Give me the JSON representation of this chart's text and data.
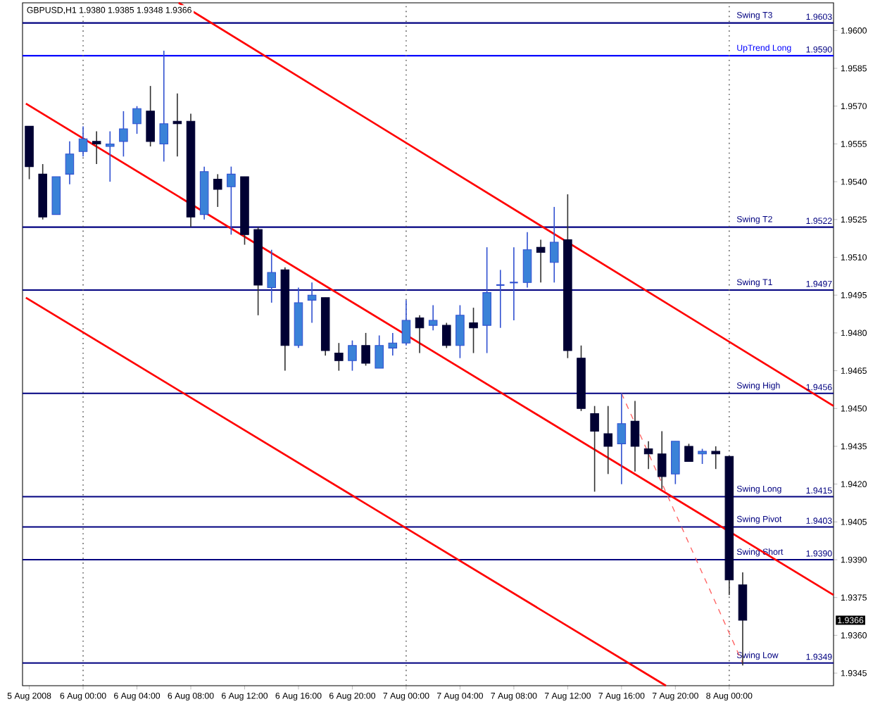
{
  "chart_data": {
    "type": "candlestick",
    "title": "GBPUSD,H1  1.9380 1.9385 1.9348 1.9366",
    "x": [
      "2008-08-05T20:00",
      "2008-08-05T21:00",
      "2008-08-05T22:00",
      "2008-08-05T23:00",
      "2008-08-06T00:00",
      "2008-08-06T01:00",
      "2008-08-06T02:00",
      "2008-08-06T03:00",
      "2008-08-06T04:00",
      "2008-08-06T05:00",
      "2008-08-06T06:00",
      "2008-08-06T07:00",
      "2008-08-06T08:00",
      "2008-08-06T09:00",
      "2008-08-06T10:00",
      "2008-08-06T11:00",
      "2008-08-06T12:00",
      "2008-08-06T13:00",
      "2008-08-06T14:00",
      "2008-08-06T15:00",
      "2008-08-06T16:00",
      "2008-08-06T17:00",
      "2008-08-06T18:00",
      "2008-08-06T19:00",
      "2008-08-06T20:00",
      "2008-08-06T21:00",
      "2008-08-06T22:00",
      "2008-08-06T23:00",
      "2008-08-07T00:00",
      "2008-08-07T01:00",
      "2008-08-07T02:00",
      "2008-08-07T03:00",
      "2008-08-07T04:00",
      "2008-08-07T05:00",
      "2008-08-07T06:00",
      "2008-08-07T07:00",
      "2008-08-07T08:00",
      "2008-08-07T09:00",
      "2008-08-07T10:00",
      "2008-08-07T11:00",
      "2008-08-07T12:00",
      "2008-08-07T13:00",
      "2008-08-07T14:00",
      "2008-08-07T15:00",
      "2008-08-07T16:00",
      "2008-08-07T17:00",
      "2008-08-07T18:00",
      "2008-08-07T19:00",
      "2008-08-07T20:00",
      "2008-08-07T21:00",
      "2008-08-07T22:00",
      "2008-08-07T23:00",
      "2008-08-08T00:00",
      "2008-08-08T01:00"
    ],
    "ohlc": [
      [
        1.9562,
        1.9562,
        1.9541,
        1.9546
      ],
      [
        1.9543,
        1.9547,
        1.9525,
        1.9526
      ],
      [
        1.9527,
        1.9542,
        1.9527,
        1.9542
      ],
      [
        1.9543,
        1.9556,
        1.9539,
        1.9551
      ],
      [
        1.9552,
        1.9562,
        1.955,
        1.9557
      ],
      [
        1.9556,
        1.956,
        1.9547,
        1.9555
      ],
      [
        1.9554,
        1.956,
        1.954,
        1.9555
      ],
      [
        1.9556,
        1.9568,
        1.955,
        1.9561
      ],
      [
        1.9563,
        1.957,
        1.9559,
        1.9569
      ],
      [
        1.9568,
        1.9578,
        1.9554,
        1.9556
      ],
      [
        1.9555,
        1.9592,
        1.9548,
        1.9563
      ],
      [
        1.9564,
        1.9575,
        1.955,
        1.9563
      ],
      [
        1.9564,
        1.9567,
        1.9522,
        1.9526
      ],
      [
        1.9527,
        1.9546,
        1.9525,
        1.9544
      ],
      [
        1.9541,
        1.9543,
        1.953,
        1.9537
      ],
      [
        1.9538,
        1.9546,
        1.9519,
        1.9543
      ],
      [
        1.9542,
        1.9542,
        1.9515,
        1.9519
      ],
      [
        1.9521,
        1.9522,
        1.9487,
        1.9499
      ],
      [
        1.9498,
        1.9513,
        1.9492,
        1.9504
      ],
      [
        1.9505,
        1.9506,
        1.9465,
        1.9475
      ],
      [
        1.9475,
        1.9498,
        1.9474,
        1.9492
      ],
      [
        1.9493,
        1.95,
        1.9484,
        1.9495
      ],
      [
        1.9494,
        1.9494,
        1.9471,
        1.9473
      ],
      [
        1.9472,
        1.9476,
        1.9465,
        1.9469
      ],
      [
        1.9469,
        1.9477,
        1.9465,
        1.9475
      ],
      [
        1.9475,
        1.948,
        1.9467,
        1.9468
      ],
      [
        1.9466,
        1.9479,
        1.9466,
        1.9475
      ],
      [
        1.9474,
        1.948,
        1.9471,
        1.9476
      ],
      [
        1.9476,
        1.9493,
        1.9475,
        1.9485
      ],
      [
        1.9486,
        1.9487,
        1.9472,
        1.9482
      ],
      [
        1.9483,
        1.9491,
        1.9481,
        1.9485
      ],
      [
        1.9483,
        1.9484,
        1.9474,
        1.9475
      ],
      [
        1.9475,
        1.9491,
        1.947,
        1.9487
      ],
      [
        1.9484,
        1.949,
        1.9472,
        1.9482
      ],
      [
        1.9483,
        1.9514,
        1.9472,
        1.9496
      ],
      [
        1.9499,
        1.9505,
        1.9482,
        1.9499
      ],
      [
        1.95,
        1.9514,
        1.9485,
        1.95
      ],
      [
        1.95,
        1.952,
        1.9498,
        1.9513
      ],
      [
        1.9514,
        1.9517,
        1.95,
        1.9512
      ],
      [
        1.9508,
        1.953,
        1.95,
        1.9516
      ],
      [
        1.9517,
        1.9535,
        1.947,
        1.9473
      ],
      [
        1.947,
        1.9475,
        1.9449,
        1.945
      ],
      [
        1.9448,
        1.9451,
        1.9417,
        1.9441
      ],
      [
        1.944,
        1.9451,
        1.9424,
        1.9435
      ],
      [
        1.9436,
        1.9456,
        1.942,
        1.9444
      ],
      [
        1.9445,
        1.9453,
        1.9425,
        1.9435
      ],
      [
        1.9434,
        1.9437,
        1.9426,
        1.9432
      ],
      [
        1.9432,
        1.9441,
        1.9418,
        1.9423
      ],
      [
        1.9424,
        1.9437,
        1.942,
        1.9437
      ],
      [
        1.9435,
        1.9436,
        1.9429,
        1.9429
      ],
      [
        1.9432,
        1.9434,
        1.9428,
        1.9433
      ],
      [
        1.9433,
        1.9435,
        1.9426,
        1.9432
      ],
      [
        1.9431,
        1.9431,
        1.9376,
        1.9382
      ],
      [
        1.938,
        1.9385,
        1.9348,
        1.9366
      ]
    ],
    "series": [
      {
        "type": "line",
        "color": "#ff0000",
        "x": [
          "2008-08-06T07:06",
          "2008-08-08T07:45"
        ],
        "values": [
          1.9611,
          1.9451
        ]
      },
      {
        "type": "line",
        "color": "#ff0000",
        "x": [
          "2008-08-05T19:45",
          "2008-08-08T07:45"
        ],
        "values": [
          1.9571,
          1.9376
        ]
      },
      {
        "type": "line",
        "color": "#ff0000",
        "x": [
          "2008-08-05T19:45",
          "2008-08-07T19:18"
        ],
        "values": [
          1.9494,
          1.934
        ]
      },
      {
        "type": "line",
        "color": "#ff6060",
        "line_style": "dashed",
        "x": [
          "2008-08-07T16:00",
          "2008-08-08T01:00"
        ],
        "values": [
          1.9456,
          1.9349
        ]
      }
    ],
    "xlim": [
      "2008-08-05T19:30",
      "2008-08-08T07:45"
    ],
    "xticks": [
      {
        "value": "2008-08-05T20:00",
        "label": "5 Aug 2008"
      },
      {
        "value": "2008-08-06T00:00",
        "label": "6 Aug 00:00"
      },
      {
        "value": "2008-08-06T04:00",
        "label": "6 Aug 04:00"
      },
      {
        "value": "2008-08-06T08:00",
        "label": "6 Aug 08:00"
      },
      {
        "value": "2008-08-06T12:00",
        "label": "6 Aug 12:00"
      },
      {
        "value": "2008-08-06T16:00",
        "label": "6 Aug 16:00"
      },
      {
        "value": "2008-08-06T20:00",
        "label": "6 Aug 20:00"
      },
      {
        "value": "2008-08-07T00:00",
        "label": "7 Aug 00:00"
      },
      {
        "value": "2008-08-07T04:00",
        "label": "7 Aug 04:00"
      },
      {
        "value": "2008-08-07T08:00",
        "label": "7 Aug 08:00"
      },
      {
        "value": "2008-08-07T12:00",
        "label": "7 Aug 12:00"
      },
      {
        "value": "2008-08-07T16:00",
        "label": "7 Aug 16:00"
      },
      {
        "value": "2008-08-07T20:00",
        "label": "7 Aug 20:00"
      },
      {
        "value": "2008-08-08T00:00",
        "label": "8 Aug 00:00"
      }
    ],
    "ylim": [
      1.934,
      1.9611
    ],
    "yticks": [
      1.9345,
      {
        "value": 1.936,
        "label": "1.9360"
      },
      1.9375,
      {
        "value": 1.939,
        "label": "1.9390"
      },
      1.9405,
      {
        "value": 1.942,
        "label": "1.9420"
      },
      1.9435,
      {
        "value": 1.945,
        "label": "1.9450"
      },
      1.9465,
      {
        "value": 1.948,
        "label": "1.9480"
      },
      1.9495,
      {
        "value": 1.951,
        "label": "1.9510"
      },
      1.9525,
      {
        "value": 1.954,
        "label": "1.9540"
      },
      1.9555,
      {
        "value": 1.957,
        "label": "1.9570"
      },
      1.9585,
      {
        "value": 1.96,
        "label": "1.9600"
      }
    ],
    "ref_lines": [
      {
        "axis": "y",
        "value": 1.9603,
        "label": "Swing T3",
        "color": "#000080"
      },
      {
        "axis": "y",
        "value": 1.959,
        "label": "UpTrend Long",
        "color": "#0000ff"
      },
      {
        "axis": "y",
        "value": 1.9522,
        "label": "Swing T2",
        "color": "#000080"
      },
      {
        "axis": "y",
        "value": 1.9497,
        "label": "Swing T1",
        "color": "#000080"
      },
      {
        "axis": "y",
        "value": 1.9456,
        "label": "Swing High",
        "color": "#000080"
      },
      {
        "axis": "y",
        "value": 1.9415,
        "label": "Swing Long",
        "color": "#000080"
      },
      {
        "axis": "y",
        "value": 1.9403,
        "label": "Swing Pivot",
        "color": "#000080"
      },
      {
        "axis": "y",
        "value": 1.939,
        "label": "Swing Short",
        "color": "#000080"
      },
      {
        "axis": "y",
        "value": 1.9349,
        "label": "Swing Low",
        "color": "#000080"
      },
      {
        "axis": "x",
        "value": "2008-08-06T00:00",
        "color": "#606060",
        "line_style": "dotted"
      },
      {
        "axis": "x",
        "value": "2008-08-07T00:00",
        "color": "#606060",
        "line_style": "dotted"
      },
      {
        "axis": "x",
        "value": "2008-08-08T00:00",
        "color": "#606060",
        "line_style": "dotted"
      }
    ],
    "annotations": [
      {
        "text": "1.9603",
        "x": "2008-08-08T07:45",
        "y": 1.9603
      },
      {
        "text": "1.9590",
        "x": "2008-08-08T07:45",
        "y": 1.959
      },
      {
        "text": "1.9522",
        "x": "2008-08-08T07:45",
        "y": 1.9522
      },
      {
        "text": "1.9497",
        "x": "2008-08-08T07:45",
        "y": 1.9497
      },
      {
        "text": "1.9456",
        "x": "2008-08-08T07:45",
        "y": 1.9456
      },
      {
        "text": "1.9415",
        "x": "2008-08-08T07:45",
        "y": 1.9415
      },
      {
        "text": "1.9403",
        "x": "2008-08-08T07:45",
        "y": 1.9403
      },
      {
        "text": "1.9390",
        "x": "2008-08-08T07:45",
        "y": 1.939
      },
      {
        "text": "1.9349",
        "x": "2008-08-08T07:45",
        "y": 1.9349
      },
      {
        "text": "1.9366",
        "y": 1.9366
      }
    ]
  }
}
